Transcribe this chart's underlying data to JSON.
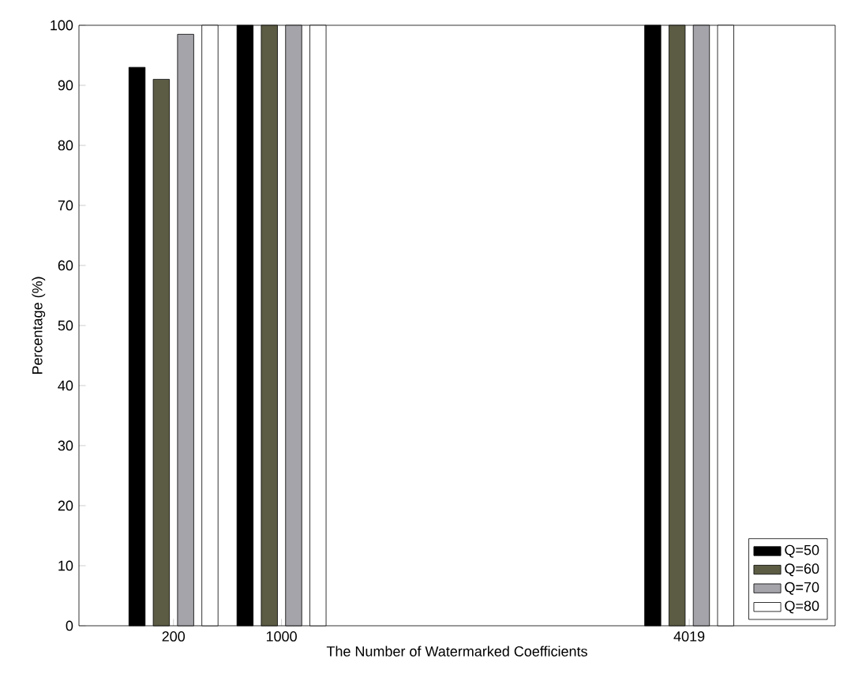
{
  "chart_data": {
    "type": "bar",
    "xlabel": "The Number of Watermarked Coefficients",
    "ylabel": "Percentage (%)",
    "x": [
      200,
      1000,
      4019
    ],
    "xlim": [
      -500,
      5100
    ],
    "xticks": [
      200,
      1000,
      4019
    ],
    "ylim": [
      0,
      100
    ],
    "yticks": [
      0,
      10,
      20,
      30,
      40,
      50,
      60,
      70,
      80,
      90,
      100
    ],
    "series": [
      {
        "name": "Q=50",
        "color": "#000000",
        "values": [
          93,
          100,
          100
        ]
      },
      {
        "name": "Q=60",
        "color": "#5c5c44",
        "values": [
          91,
          100,
          100
        ]
      },
      {
        "name": "Q=70",
        "color": "#a4a4aa",
        "values": [
          98.5,
          100,
          100
        ]
      },
      {
        "name": "Q=80",
        "color": "#ffffff",
        "values": [
          100,
          100,
          100
        ]
      }
    ],
    "grid": false,
    "legend": "bottom right"
  }
}
